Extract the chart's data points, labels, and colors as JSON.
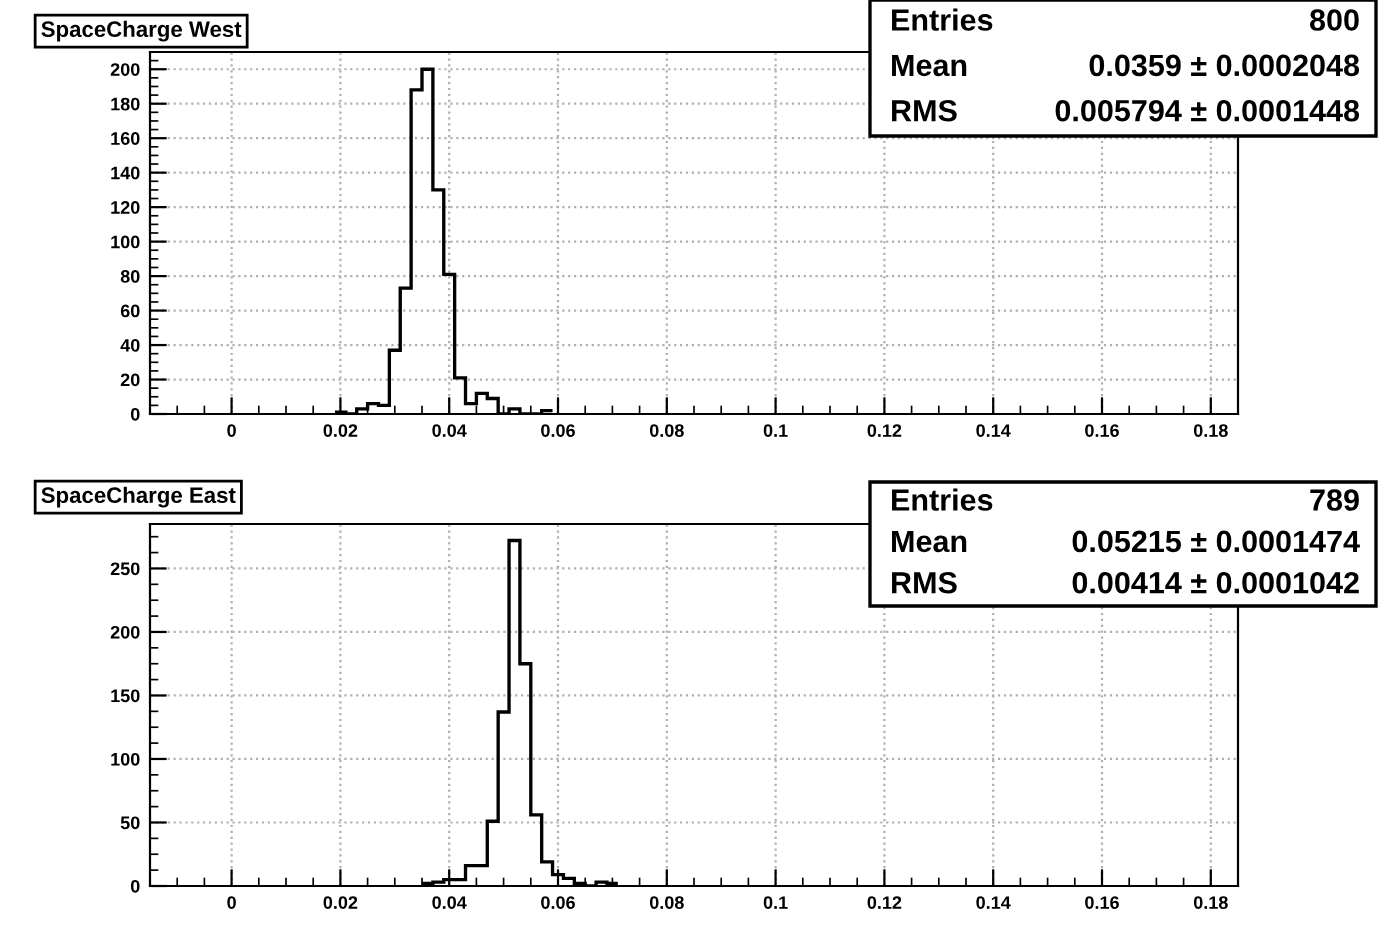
{
  "chart_data": [
    {
      "type": "histogram",
      "title": "SpaceCharge West",
      "bins": [
        0.019,
        0.021,
        0.023,
        0.025,
        0.027,
        0.029,
        0.031,
        0.033,
        0.035,
        0.037,
        0.039,
        0.041,
        0.043,
        0.045,
        0.047,
        0.049,
        0.051,
        0.053,
        0.055,
        0.057,
        0.059
      ],
      "values": [
        1,
        0,
        3,
        6,
        5,
        37,
        73,
        188,
        200,
        130,
        81,
        21,
        6,
        12,
        9,
        0,
        3,
        0,
        0,
        2
      ],
      "color": "#000000",
      "xlim": [
        -0.015,
        0.185
      ],
      "xticks": [
        0,
        0.02,
        0.04,
        0.06,
        0.08,
        0.1,
        0.12,
        0.14,
        0.16,
        0.18
      ],
      "ylim": [
        0,
        210
      ],
      "yticks": [
        0,
        20,
        40,
        60,
        80,
        100,
        120,
        140,
        160,
        180,
        200
      ],
      "grid": true,
      "annotations": [
        "Entries",
        "800",
        "Mean",
        "0.0359 ± 0.0002048",
        "RMS",
        "0.005794 ± 0.0001448"
      ]
    },
    {
      "type": "histogram",
      "title": "SpaceCharge East",
      "bins": [
        0.035,
        0.037,
        0.039,
        0.041,
        0.043,
        0.045,
        0.047,
        0.049,
        0.051,
        0.053,
        0.055,
        0.057,
        0.059,
        0.061,
        0.063,
        0.065,
        0.067,
        0.069,
        0.071
      ],
      "values": [
        2,
        3,
        5,
        5,
        16,
        16,
        51,
        137,
        272,
        175,
        56,
        19,
        9,
        6,
        2,
        0,
        3,
        2
      ],
      "color": "#000000",
      "xlim": [
        -0.015,
        0.185
      ],
      "xticks": [
        0,
        0.02,
        0.04,
        0.06,
        0.08,
        0.1,
        0.12,
        0.14,
        0.16,
        0.18
      ],
      "ylim": [
        0,
        285
      ],
      "yticks": [
        0,
        50,
        100,
        150,
        200,
        250
      ],
      "grid": true,
      "annotations": [
        "Entries",
        "789",
        "Mean",
        "0.05215 ± 0.0001474",
        "RMS",
        "0.00414 ± 0.0001042"
      ]
    }
  ]
}
